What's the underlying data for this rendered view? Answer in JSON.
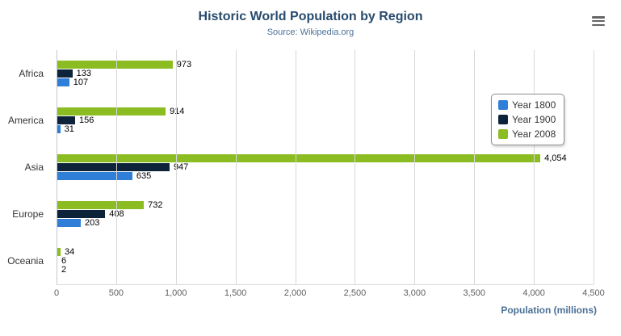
{
  "chart": {
    "title": "Historic World Population by Region",
    "subtitle": "Source: Wikipedia.org"
  },
  "chart_data": {
    "type": "bar",
    "orientation": "horizontal",
    "title": "Historic World Population by Region",
    "subtitle": "Source: Wikipedia.org",
    "categories": [
      "Africa",
      "America",
      "Asia",
      "Europe",
      "Oceania"
    ],
    "series": [
      {
        "name": "Year 1800",
        "color": "#2f7ed8",
        "values": [
          107,
          31,
          635,
          203,
          2
        ]
      },
      {
        "name": "Year 1900",
        "color": "#0d233a",
        "values": [
          133,
          156,
          947,
          408,
          6
        ]
      },
      {
        "name": "Year 2008",
        "color": "#8bbc21",
        "values": [
          973,
          914,
          4054,
          732,
          34
        ]
      }
    ],
    "xlabel": "Population (millions)",
    "xlim": [
      0,
      4500
    ],
    "tick_interval": 500,
    "grid": true,
    "legend_position": "right",
    "bar_value_labels": true
  },
  "icons": {
    "menu": "hamburger-menu-icon"
  }
}
